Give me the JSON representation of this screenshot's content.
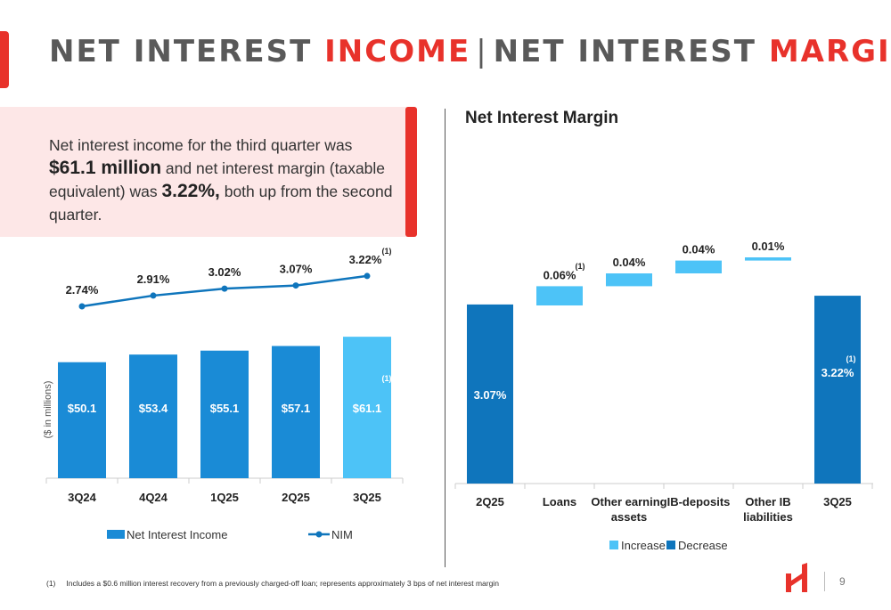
{
  "slide": {
    "title_part1": "NET INTEREST ",
    "title_part2": "INCOME",
    "title_sep": "|",
    "title_part3": "NET INTEREST ",
    "title_part4": "MARGIN",
    "page_number": "9",
    "footnote_number": "(1)",
    "footnote_text": "Includes a $0.6 million interest recovery from a previously charged-off loan; represents approximately 3 bps of net interest margin",
    "colors": {
      "accent_red": "#e8322b",
      "blue_dark": "#0f75bc",
      "blue_bar": "#1a8bd6",
      "blue_light": "#4dc3f7",
      "callout_bg": "#fde7e7"
    }
  },
  "callout": {
    "t1": "Net interest income for the third quarter was ",
    "b1": "$61.1 million",
    "t2": " and net interest margin (taxable equivalent) was ",
    "b2": "3.22%,",
    "t3": " both up from the second quarter."
  },
  "chart_data": [
    {
      "type": "bar",
      "title": "",
      "ylabel": "($ in millions)",
      "categories": [
        "3Q24",
        "4Q24",
        "1Q25",
        "2Q25",
        "3Q25"
      ],
      "series": [
        {
          "name": "Net Interest Income",
          "type": "bar",
          "values": [
            50.1,
            53.4,
            55.1,
            57.1,
            61.1
          ],
          "labels": [
            "$50.1",
            "$53.4",
            "$55.1",
            "$57.1",
            "$61.1"
          ],
          "highlight_index": 4
        },
        {
          "name": "NIM",
          "type": "line",
          "values": [
            2.74,
            2.91,
            3.02,
            3.07,
            3.22
          ],
          "labels": [
            "2.74%",
            "2.91%",
            "3.02%",
            "3.07%",
            "3.22%"
          ]
        }
      ],
      "footnote_marks": {
        "bar_index": 4,
        "line_index": 4,
        "mark": "(1)"
      },
      "legend": [
        "Net Interest Income",
        "NIM"
      ],
      "legend_position": "bottom"
    },
    {
      "type": "waterfall",
      "title": "Net Interest Margin",
      "categories": [
        "2Q25",
        "Loans",
        "Other earning assets",
        "IB-deposits",
        "Other IB liabilities",
        "3Q25"
      ],
      "category_lines": [
        [
          "2Q25"
        ],
        [
          "Loans"
        ],
        [
          "Other earning",
          "assets"
        ],
        [
          "IB-deposits"
        ],
        [
          "Other IB",
          "liabilities"
        ],
        [
          "3Q25"
        ]
      ],
      "start_value": 3.07,
      "changes": [
        0.06,
        0.04,
        0.04,
        0.01
      ],
      "end_value": 3.22,
      "labels": [
        "3.07%",
        "0.06%",
        "0.04%",
        "0.04%",
        "0.01%",
        "3.22%"
      ],
      "footnote_marks": {
        "indices": [
          1,
          5
        ],
        "mark": "(1)"
      },
      "legend": [
        "Increase",
        "Decrease"
      ],
      "legend_position": "bottom"
    }
  ]
}
